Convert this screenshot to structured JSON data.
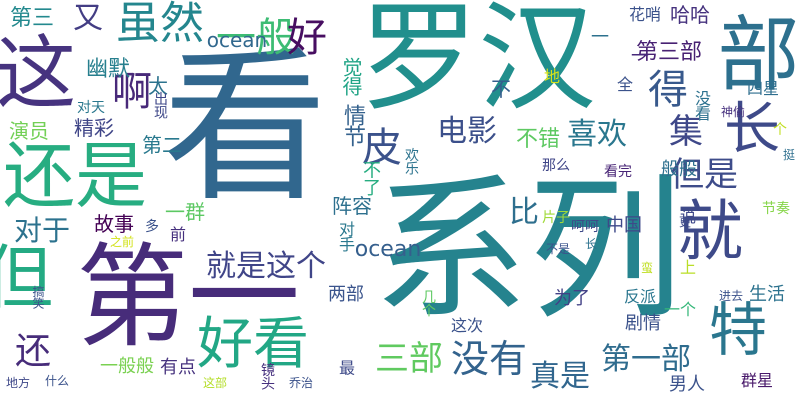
{
  "words": [
    {
      "id": "kan",
      "text": "看",
      "color": "#31678e"
    },
    {
      "id": "xilie",
      "text": "系列",
      "color": "#25838e"
    },
    {
      "id": "luohan",
      "text": "罗汉",
      "color": "#218f8d"
    },
    {
      "id": "diyi",
      "text": "第一",
      "color": "#472c7a"
    },
    {
      "id": "bu",
      "text": "部",
      "color": "#2d708e"
    },
    {
      "id": "zhe",
      "text": "这",
      "color": "#46337f"
    },
    {
      "id": "haishi",
      "text": "还是",
      "color": "#27ad81"
    },
    {
      "id": "jiu",
      "text": "就",
      "color": "#3e4a89"
    },
    {
      "id": "dan",
      "text": "但",
      "color": "#24aa83"
    },
    {
      "id": "haokan",
      "text": "好看",
      "color": "#22a785"
    },
    {
      "id": "te",
      "text": "特",
      "color": "#2a768e"
    },
    {
      "id": "chang",
      "text": "长",
      "color": "#3e4a89"
    },
    {
      "id": "suiran",
      "text": "虽然",
      "color": "#24868e"
    },
    {
      "id": "yiban",
      "text": "一般",
      "color": "#3dbc74"
    },
    {
      "id": "hao",
      "text": "好",
      "color": "#470e61"
    },
    {
      "id": "a",
      "text": "啊",
      "color": "#482979"
    },
    {
      "id": "de",
      "text": "得",
      "color": "#38598c"
    },
    {
      "id": "pi",
      "text": "皮",
      "color": "#3b528b"
    },
    {
      "id": "dianying",
      "text": "电影",
      "color": "#3c508b"
    },
    {
      "id": "xihuan",
      "text": "喜欢",
      "color": "#2a778e"
    },
    {
      "id": "ji",
      "text": "集",
      "color": "#3f4889"
    },
    {
      "id": "danshi",
      "text": "但是",
      "color": "#3e4c8a"
    },
    {
      "id": "jiushizhege",
      "text": "就是这个",
      "color": "#404588"
    },
    {
      "id": "sanbu",
      "text": "三部",
      "color": "#60ca60"
    },
    {
      "id": "meiyou",
      "text": "没有",
      "color": "#33638d"
    },
    {
      "id": "zhenshi",
      "text": "真是",
      "color": "#31668e"
    },
    {
      "id": "diyibu",
      "text": "第一部",
      "color": "#2f6c8e"
    },
    {
      "id": "huan",
      "text": "还",
      "color": "#472c7a"
    },
    {
      "id": "duiyu",
      "text": "对于",
      "color": "#2c728e"
    },
    {
      "id": "bi",
      "text": "比",
      "color": "#2e6f8e"
    },
    {
      "id": "disan",
      "text": "第三",
      "color": "#23898e"
    },
    {
      "id": "you",
      "text": "又",
      "color": "#433d84"
    },
    {
      "id": "youmo",
      "text": "幽默",
      "color": "#277f8e"
    },
    {
      "id": "tai",
      "text": "太",
      "color": "#2c738e"
    },
    {
      "id": "ocean1",
      "text": "ocean",
      "color": "#31688e"
    },
    {
      "id": "ocean2",
      "text": "ocean",
      "color": "#355f8d"
    },
    {
      "id": "juexde",
      "text": "觉得",
      "color": "#20a486"
    },
    {
      "id": "bu2",
      "text": "不",
      "color": "#355e8d"
    },
    {
      "id": "qingjie",
      "text": "情节",
      "color": "#34618d"
    },
    {
      "id": "yanyuan",
      "text": "演员",
      "color": "#73d056"
    },
    {
      "id": "jingcai",
      "text": "精彩",
      "color": "#404688"
    },
    {
      "id": "dier",
      "text": "第二",
      "color": "#29798e"
    },
    {
      "id": "bucuo",
      "text": "不错",
      "color": "#5ec962"
    },
    {
      "id": "disanbu",
      "text": "第三部",
      "color": "#482173"
    },
    {
      "id": "huashao",
      "text": "花哨",
      "color": "#3b528b"
    },
    {
      "id": "haha",
      "text": "哈哈",
      "color": "#46327e"
    },
    {
      "id": "sixing",
      "text": "四星",
      "color": "#2e6e8e"
    },
    {
      "id": "meikan",
      "text": "没看",
      "color": "#2c718e"
    },
    {
      "id": "shentou",
      "text": "神偷",
      "color": "#46307e"
    },
    {
      "id": "quan",
      "text": "全",
      "color": "#3b528b"
    },
    {
      "id": "di",
      "text": "地",
      "color": "#d8e219"
    },
    {
      "id": "chuxian",
      "text": "出现",
      "color": "#3f4889"
    },
    {
      "id": "duitian",
      "text": "对天",
      "color": "#2a788e"
    },
    {
      "id": "yi1",
      "text": "一",
      "color": "#2c718e"
    },
    {
      "id": "yi2",
      "text": "一",
      "color": "#472a7a"
    },
    {
      "id": "bule",
      "text": "不了",
      "color": "#27ad81"
    },
    {
      "id": "huanle",
      "text": "欢乐",
      "color": "#2c738e"
    },
    {
      "id": "name",
      "text": "那么",
      "color": "#404688"
    },
    {
      "id": "kanwan",
      "text": "看完",
      "color": "#482576"
    },
    {
      "id": "banban",
      "text": "般般",
      "color": "#2e6f8e"
    },
    {
      "id": "ge",
      "text": "个",
      "color": "#c2df23"
    },
    {
      "id": "ting",
      "text": "挺",
      "color": "#2e6f8e"
    },
    {
      "id": "jiezou",
      "text": "节奏",
      "color": "#86d549"
    },
    {
      "id": "gushi",
      "text": "故事",
      "color": "#440154"
    },
    {
      "id": "duo",
      "text": "多",
      "color": "#3b528b"
    },
    {
      "id": "yiqun",
      "text": "一群",
      "color": "#5cc863"
    },
    {
      "id": "qian",
      "text": "前",
      "color": "#46307e"
    },
    {
      "id": "zhenrong",
      "text": "阵容",
      "color": "#2d708e"
    },
    {
      "id": "duishou",
      "text": "对手",
      "color": "#2a788e"
    },
    {
      "id": "zhongguo",
      "text": "中国",
      "color": "#3e4989"
    },
    {
      "id": "pianzi",
      "text": "片子",
      "color": "#a0da39"
    },
    {
      "id": "hehe",
      "text": "呵呵",
      "color": "#3e4a89"
    },
    {
      "id": "shuo",
      "text": "说",
      "color": "#3f4889"
    },
    {
      "id": "geng",
      "text": "更",
      "color": "#3e4a89"
    },
    {
      "id": "bushi",
      "text": "不是",
      "color": "#3b528b"
    },
    {
      "id": "zhiqian",
      "text": "之前",
      "color": "#d2e21b"
    },
    {
      "id": "liangbu",
      "text": "两部",
      "color": "#3a548c"
    },
    {
      "id": "weile",
      "text": "为了",
      "color": "#424186"
    },
    {
      "id": "juqing",
      "text": "剧情",
      "color": "#3b528b"
    },
    {
      "id": "jige",
      "text": "几个",
      "color": "#5ec962"
    },
    {
      "id": "fanpai",
      "text": "反派",
      "color": "#2a768e"
    },
    {
      "id": "shang",
      "text": "上",
      "color": "#bade28"
    },
    {
      "id": "yige",
      "text": "一个",
      "color": "#35b779"
    },
    {
      "id": "man",
      "text": "蛮",
      "color": "#c0df25"
    },
    {
      "id": "shenghuo",
      "text": "生活",
      "color": "#2c728e"
    },
    {
      "id": "jinqu",
      "text": "进去",
      "color": "#3b528b"
    },
    {
      "id": "chang2",
      "text": "长",
      "color": "#2c728e"
    },
    {
      "id": "gaoxiao",
      "text": "搞笑",
      "color": "#3b528b"
    },
    {
      "id": "zhece",
      "text": "这次",
      "color": "#3b528b"
    },
    {
      "id": "nanren",
      "text": "男人",
      "color": "#3b528b"
    },
    {
      "id": "qunxing",
      "text": "群星",
      "color": "#48186a"
    },
    {
      "id": "difang",
      "text": "地方",
      "color": "#3f4889"
    },
    {
      "id": "shenme",
      "text": "什么",
      "color": "#3b528b"
    },
    {
      "id": "yibanban",
      "text": "一般般",
      "color": "#7ad151"
    },
    {
      "id": "youdian",
      "text": "有点",
      "color": "#46327e"
    },
    {
      "id": "zhebu",
      "text": "这部",
      "color": "#b5de2b"
    },
    {
      "id": "jingtou",
      "text": "镜头",
      "color": "#46307e"
    },
    {
      "id": "qiaozhi",
      "text": "乔治",
      "color": "#3b528b"
    },
    {
      "id": "zui",
      "text": "最",
      "color": "#3e4a89"
    }
  ]
}
